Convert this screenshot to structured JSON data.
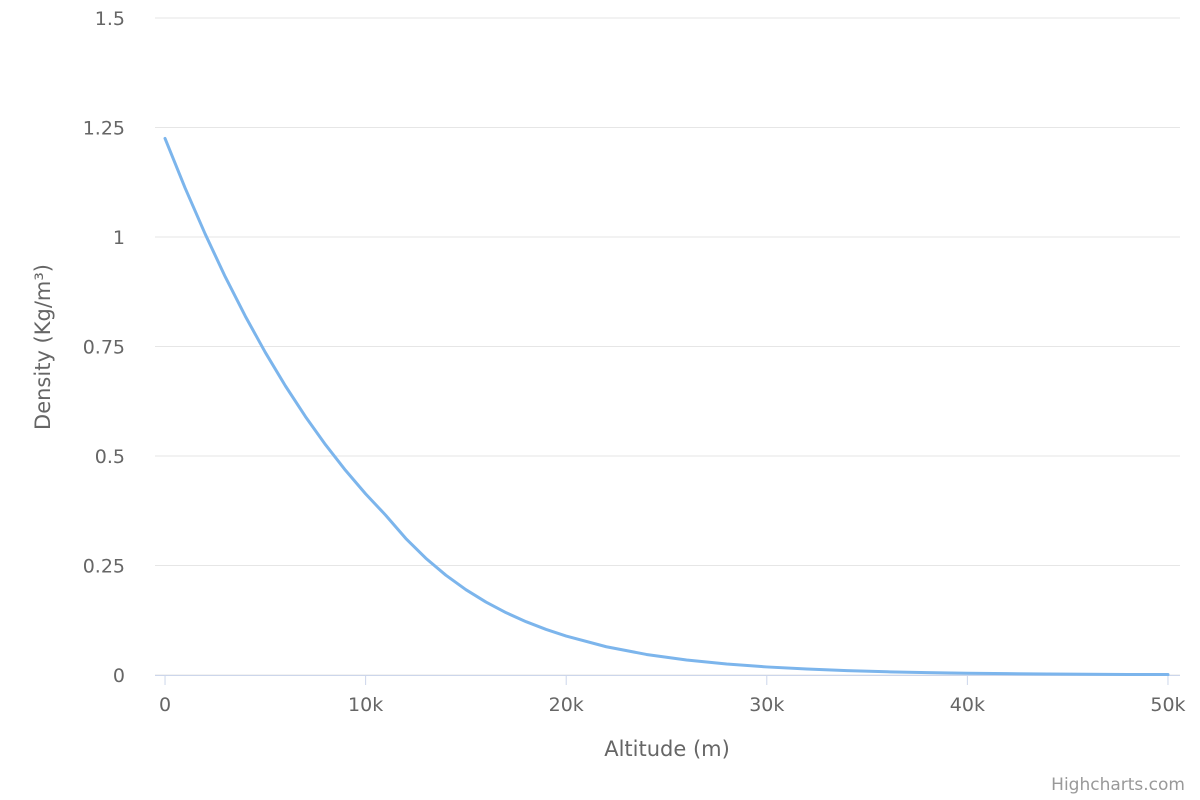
{
  "chart_data": {
    "type": "line",
    "x_label": "Altitude (m)",
    "y_label": "Density (Kg/m³)",
    "credits": "Highcharts.com",
    "x": [
      0,
      1000,
      2000,
      3000,
      4000,
      5000,
      6000,
      7000,
      8000,
      9000,
      10000,
      11000,
      12000,
      13000,
      14000,
      15000,
      16000,
      17000,
      18000,
      19000,
      20000,
      22000,
      24000,
      26000,
      28000,
      30000,
      32000,
      34000,
      36000,
      38000,
      40000,
      42000,
      44000,
      46000,
      48000,
      50000
    ],
    "series": [
      {
        "color": "#7cb5ec",
        "values": [
          1.225,
          1.112,
          1.007,
          0.9093,
          0.8194,
          0.7364,
          0.6601,
          0.59,
          0.5258,
          0.4671,
          0.4135,
          0.3648,
          0.3119,
          0.2666,
          0.2279,
          0.1948,
          0.1665,
          0.1423,
          0.1217,
          0.104,
          0.0889,
          0.0645,
          0.0469,
          0.0343,
          0.0251,
          0.0184,
          0.0136,
          0.0099,
          0.0073,
          0.0054,
          0.004,
          0.003,
          0.0022,
          0.0016,
          0.0012,
          0.001
        ]
      }
    ],
    "xlim": [
      -500,
      50600
    ],
    "ylim": [
      0,
      1.5
    ],
    "xticks": [
      0,
      {
        "value": 10000,
        "label": "10k"
      },
      {
        "value": 20000,
        "label": "20k"
      },
      {
        "value": 30000,
        "label": "30k"
      },
      {
        "value": 40000,
        "label": "40k"
      },
      {
        "value": 50000,
        "label": "50k"
      }
    ],
    "yticks": [
      0,
      0.25,
      0.5,
      0.75,
      1,
      1.25,
      1.5
    ],
    "grid": true
  }
}
